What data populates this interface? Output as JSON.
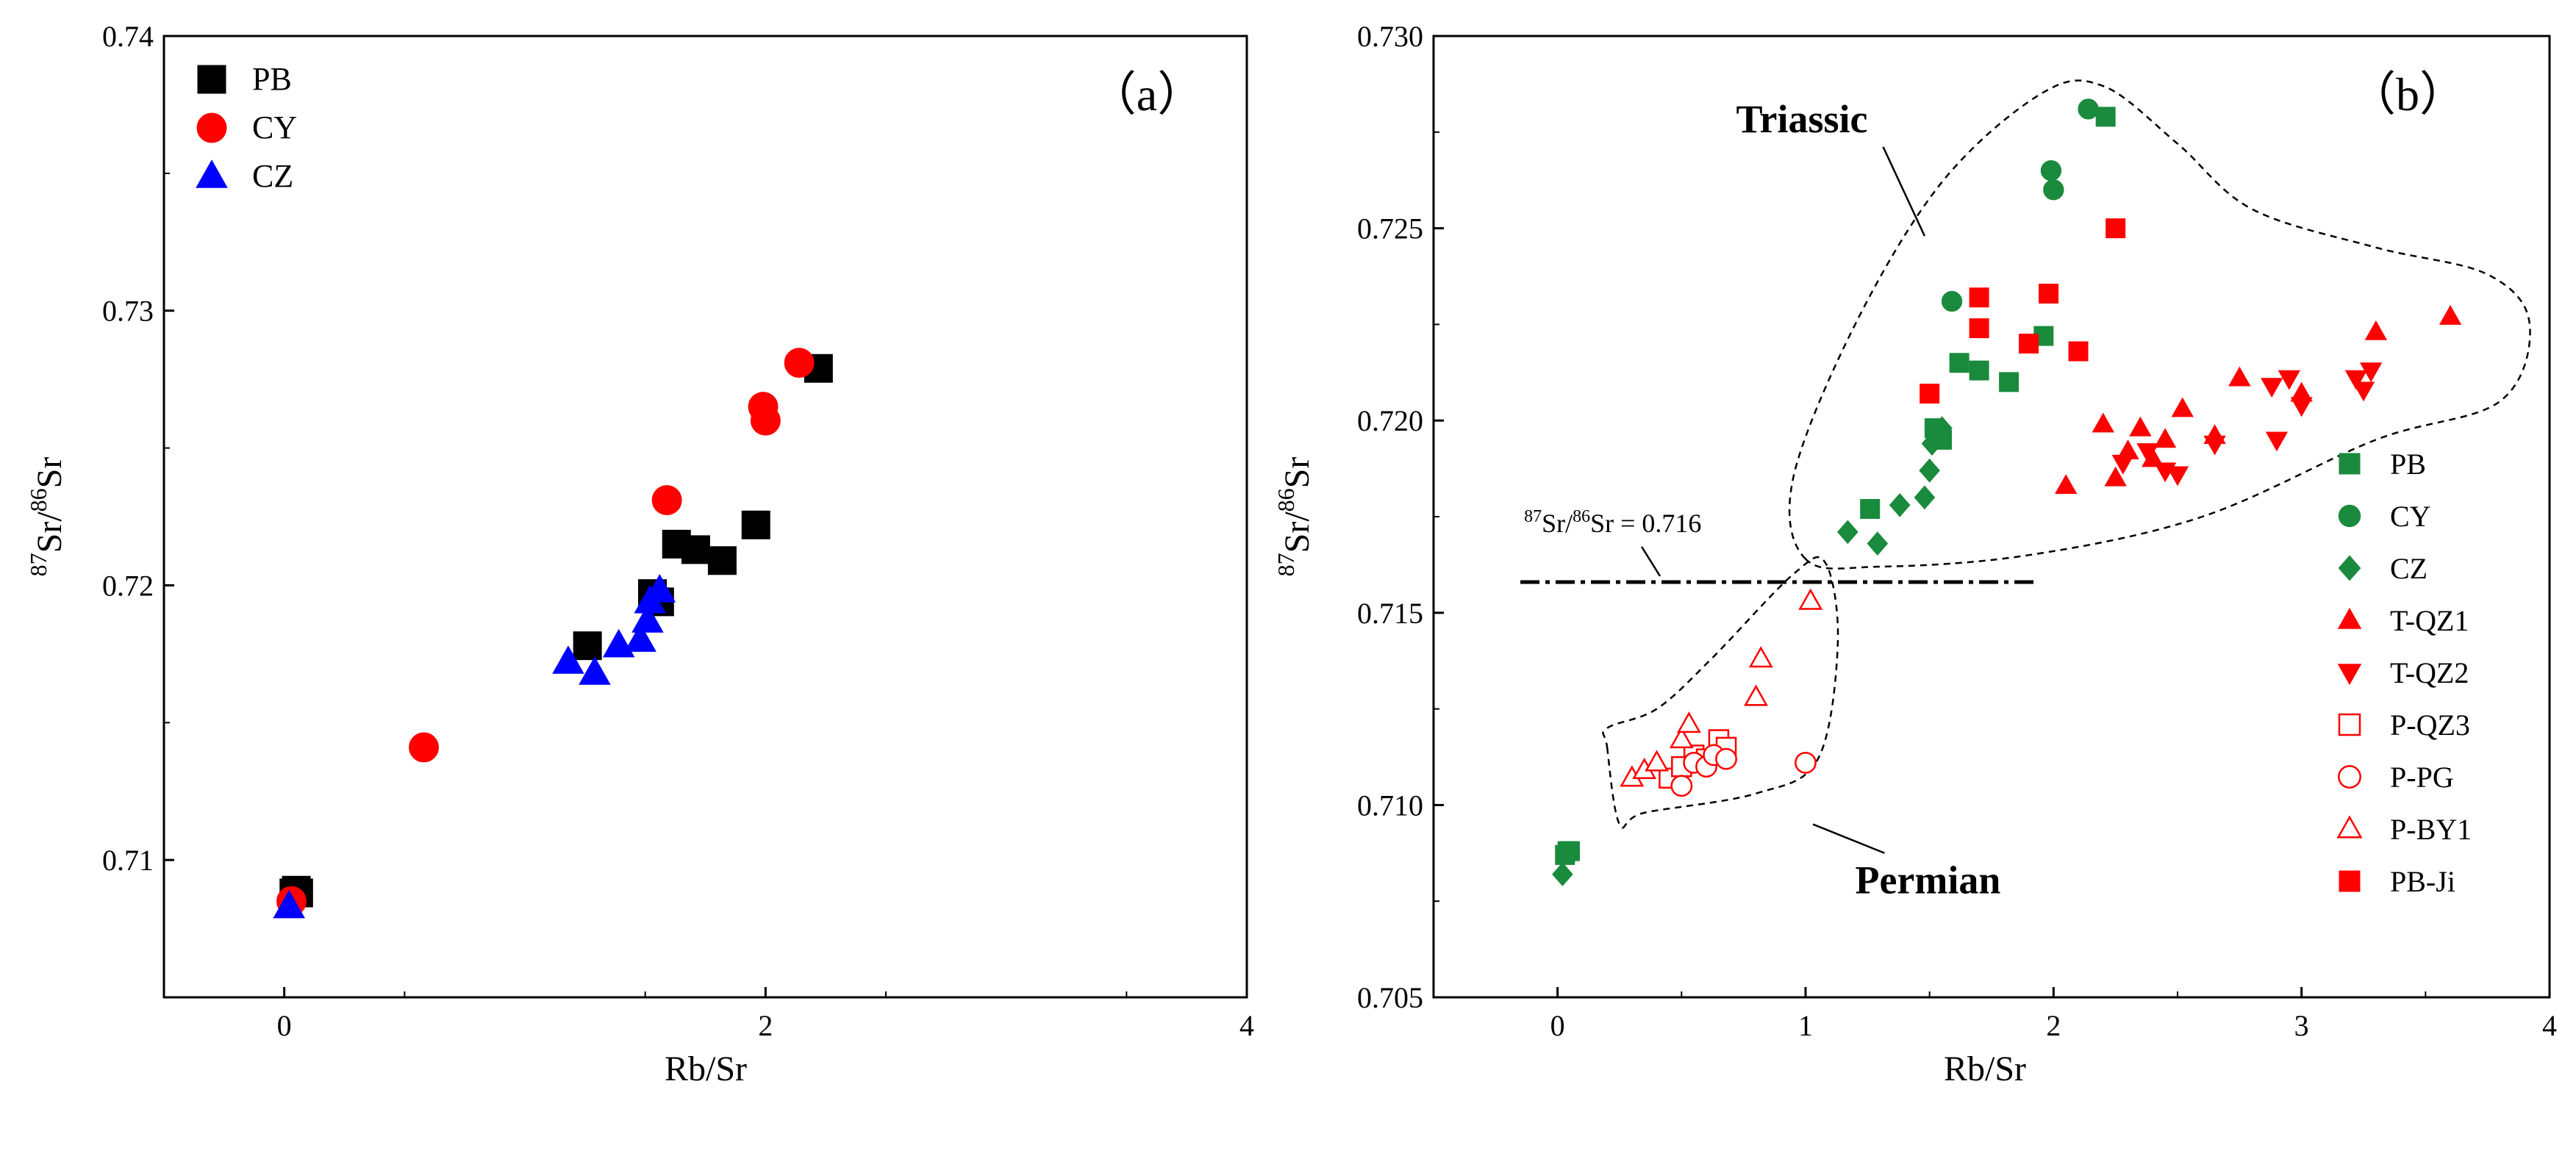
{
  "chart_data": [
    {
      "type": "scatter",
      "panel_label": "（a）",
      "xlabel": "Rb/Sr",
      "ylabel_parts": {
        "sup": "87",
        "a": "Sr/",
        "sup2": "86",
        "b": "Sr"
      },
      "xlim": [
        -0.5,
        4
      ],
      "ylim": [
        0.705,
        0.74
      ],
      "xticks": [
        0,
        2,
        4
      ],
      "xtick_labels": [
        "0",
        "2",
        "4"
      ],
      "yticks": [
        0.71,
        0.72,
        0.73,
        0.74
      ],
      "ytick_labels": [
        "0.71",
        "0.72",
        "0.73",
        "0.74"
      ],
      "legend_position": "top-left",
      "series": [
        {
          "name": "PB",
          "marker": "square",
          "color": "#000000",
          "filled": true,
          "points": [
            [
              0.04,
              0.7088
            ],
            [
              0.05,
              0.7089
            ],
            [
              0.06,
              0.7088
            ],
            [
              1.26,
              0.7178
            ],
            [
              1.53,
              0.7197
            ],
            [
              1.56,
              0.7194
            ],
            [
              1.63,
              0.7215
            ],
            [
              1.71,
              0.7213
            ],
            [
              1.82,
              0.7209
            ],
            [
              1.96,
              0.7222
            ],
            [
              2.22,
              0.7279
            ]
          ]
        },
        {
          "name": "CY",
          "marker": "circle",
          "color": "#ff0000",
          "filled": true,
          "points": [
            [
              0.03,
              0.7085
            ],
            [
              0.58,
              0.7141
            ],
            [
              1.59,
              0.7231
            ],
            [
              1.99,
              0.7265
            ],
            [
              2.0,
              0.726
            ],
            [
              2.14,
              0.7281
            ]
          ]
        },
        {
          "name": "CZ",
          "marker": "triangle",
          "color": "#0000ff",
          "filled": true,
          "points": [
            [
              0.02,
              0.7083
            ],
            [
              1.18,
              0.7172
            ],
            [
              1.29,
              0.7168
            ],
            [
              1.39,
              0.7178
            ],
            [
              1.48,
              0.718
            ],
            [
              1.51,
              0.7187
            ],
            [
              1.52,
              0.7194
            ],
            [
              1.56,
              0.7198
            ]
          ]
        }
      ]
    },
    {
      "type": "scatter",
      "panel_label": "（b）",
      "xlabel": "Rb/Sr",
      "ylabel_parts": {
        "sup": "87",
        "a": "Sr/",
        "sup2": "86",
        "b": "Sr"
      },
      "xlim": [
        -0.5,
        4
      ],
      "ylim": [
        0.705,
        0.73
      ],
      "xticks": [
        0,
        1,
        2,
        3,
        4
      ],
      "xtick_labels": [
        "0",
        "1",
        "2",
        "3",
        "4"
      ],
      "yticks": [
        0.705,
        0.71,
        0.715,
        0.72,
        0.725,
        0.73
      ],
      "ytick_labels": [
        "0.705",
        "0.710",
        "0.715",
        "0.720",
        "0.725",
        "0.730"
      ],
      "legend_position": "bottom-right",
      "reference_line": {
        "y": 0.7158,
        "x_from": -0.15,
        "x_to": 1.93,
        "label_parts": {
          "sup": "87",
          "a": "Sr/",
          "sup2": "86",
          "b": "Sr = 0.716"
        }
      },
      "annotations": [
        {
          "text": "Triassic",
          "x": 0.72,
          "y": 0.7275,
          "arrow_to": [
            1.48,
            0.7248
          ]
        },
        {
          "text": "Permian",
          "x": 1.2,
          "y": 0.7077,
          "arrow_to": [
            1.03,
            0.7095
          ]
        }
      ],
      "regions": [
        {
          "name": "triassic-region",
          "points": [
            [
              1.0,
              0.7164
            ],
            [
              0.95,
              0.7185
            ],
            [
              1.2,
              0.7225
            ],
            [
              1.55,
              0.7262
            ],
            [
              1.95,
              0.7285
            ],
            [
              2.2,
              0.7287
            ],
            [
              2.5,
              0.7272
            ],
            [
              2.8,
              0.7255
            ],
            [
              3.3,
              0.7245
            ],
            [
              3.75,
              0.7238
            ],
            [
              3.92,
              0.7225
            ],
            [
              3.8,
              0.7205
            ],
            [
              3.3,
              0.7195
            ],
            [
              2.6,
              0.7175
            ],
            [
              1.9,
              0.7165
            ],
            [
              1.3,
              0.7162
            ]
          ]
        },
        {
          "name": "permian-region",
          "points": [
            [
              0.2,
              0.7115
            ],
            [
              0.25,
              0.7095
            ],
            [
              0.35,
              0.7098
            ],
            [
              0.8,
              0.7103
            ],
            [
              1.05,
              0.7112
            ],
            [
              1.13,
              0.7142
            ],
            [
              1.08,
              0.7163
            ],
            [
              0.95,
              0.716
            ],
            [
              0.62,
              0.7138
            ],
            [
              0.4,
              0.7125
            ],
            [
              0.2,
              0.712
            ]
          ]
        }
      ],
      "series": [
        {
          "name": "PB",
          "marker": "square",
          "color": "#1a8a3c",
          "filled": true,
          "points": [
            [
              0.03,
              0.7087
            ],
            [
              0.04,
              0.7088
            ],
            [
              0.05,
              0.7088
            ],
            [
              1.26,
              0.7177
            ],
            [
              1.52,
              0.7198
            ],
            [
              1.55,
              0.7195
            ],
            [
              1.62,
              0.7215
            ],
            [
              1.7,
              0.7213
            ],
            [
              1.82,
              0.721
            ],
            [
              1.96,
              0.7222
            ],
            [
              2.21,
              0.7279
            ]
          ]
        },
        {
          "name": "CY",
          "marker": "circle",
          "color": "#1a8a3c",
          "filled": true,
          "points": [
            [
              1.59,
              0.7231
            ],
            [
              1.99,
              0.7265
            ],
            [
              2.0,
              0.726
            ],
            [
              2.14,
              0.7281
            ]
          ]
        },
        {
          "name": "CZ",
          "marker": "diamond",
          "color": "#1a8a3c",
          "filled": true,
          "points": [
            [
              0.02,
              0.7082
            ],
            [
              1.17,
              0.7171
            ],
            [
              1.29,
              0.7168
            ],
            [
              1.38,
              0.7178
            ],
            [
              1.48,
              0.718
            ],
            [
              1.5,
              0.7187
            ],
            [
              1.51,
              0.7194
            ],
            [
              1.55,
              0.7198
            ]
          ]
        },
        {
          "name": "T-QZ1",
          "marker": "triangle",
          "color": "#ff0000",
          "filled": true,
          "points": [
            [
              2.05,
              0.7183
            ],
            [
              2.2,
              0.7199
            ],
            [
              2.25,
              0.7185
            ],
            [
              2.3,
              0.7192
            ],
            [
              2.35,
              0.7198
            ],
            [
              2.4,
              0.719
            ],
            [
              2.45,
              0.7195
            ],
            [
              2.52,
              0.7203
            ],
            [
              2.75,
              0.7211
            ],
            [
              2.65,
              0.7196
            ],
            [
              3.0,
              0.7207
            ],
            [
              3.3,
              0.7223
            ],
            [
              3.6,
              0.7227
            ]
          ]
        },
        {
          "name": "T-QZ2",
          "marker": "triangle-down",
          "color": "#ff0000",
          "filled": true,
          "points": [
            [
              2.28,
              0.7189
            ],
            [
              2.38,
              0.7192
            ],
            [
              2.45,
              0.7187
            ],
            [
              2.5,
              0.7186
            ],
            [
              2.65,
              0.7194
            ],
            [
              2.88,
              0.7209
            ],
            [
              2.9,
              0.7195
            ],
            [
              2.95,
              0.7211
            ],
            [
              3.0,
              0.7204
            ],
            [
              3.22,
              0.7211
            ],
            [
              3.25,
              0.7208
            ],
            [
              3.28,
              0.7213
            ]
          ]
        },
        {
          "name": "P-QZ3",
          "marker": "square",
          "color": "#ff0000",
          "filled": false,
          "points": [
            [
              0.45,
              0.7107
            ],
            [
              0.5,
              0.711
            ],
            [
              0.55,
              0.7113
            ],
            [
              0.6,
              0.7112
            ],
            [
              0.65,
              0.7117
            ],
            [
              0.68,
              0.7115
            ]
          ]
        },
        {
          "name": "P-PG",
          "marker": "circle",
          "color": "#ff0000",
          "filled": false,
          "points": [
            [
              0.5,
              0.7105
            ],
            [
              0.55,
              0.7111
            ],
            [
              0.6,
              0.711
            ],
            [
              0.63,
              0.7113
            ],
            [
              0.68,
              0.7112
            ],
            [
              1.0,
              0.7111
            ]
          ]
        },
        {
          "name": "P-BY1",
          "marker": "triangle",
          "color": "#ff0000",
          "filled": false,
          "points": [
            [
              0.3,
              0.7107
            ],
            [
              0.35,
              0.7109
            ],
            [
              0.4,
              0.7111
            ],
            [
              0.5,
              0.7117
            ],
            [
              0.53,
              0.7121
            ],
            [
              0.8,
              0.7128
            ],
            [
              0.82,
              0.7138
            ],
            [
              1.02,
              0.7153
            ]
          ]
        },
        {
          "name": "PB-Ji",
          "marker": "square",
          "color": "#ff0000",
          "filled": true,
          "points": [
            [
              1.5,
              0.7207
            ],
            [
              1.7,
              0.7232
            ],
            [
              1.7,
              0.7224
            ],
            [
              1.98,
              0.7233
            ],
            [
              1.9,
              0.722
            ],
            [
              2.1,
              0.7218
            ],
            [
              2.25,
              0.725
            ]
          ]
        }
      ]
    }
  ]
}
